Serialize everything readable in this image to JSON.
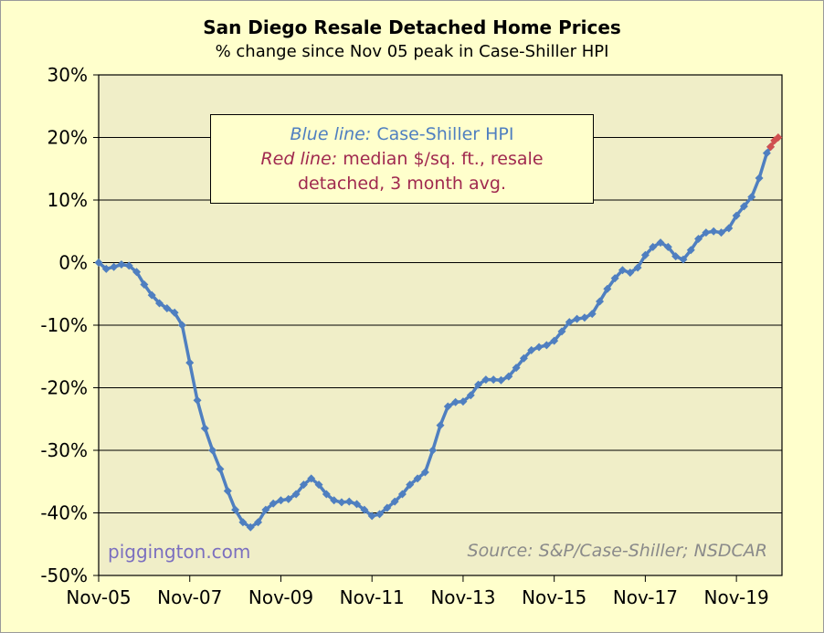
{
  "title": "San Diego Resale Detached Home Prices",
  "subtitle": "% change since Nov 05 peak in Case-Shiller HPI",
  "legend": {
    "blue_label": "Blue line:",
    "blue_text": "Case-Shiller HPI",
    "red_label": "Red line:",
    "red_text_1": "median $/sq. ft., resale",
    "red_text_2": "detached, 3 month avg."
  },
  "watermark": "piggington.com",
  "source": "Source: S&P/Case-Shiller; NSDCAR",
  "colors": {
    "blue": "#4f7fc0",
    "red": "#d05050",
    "plot_bg": "#f0eec8",
    "frame_bg": "#ffffcc",
    "legend_blue": "#4f7fc0",
    "legend_red": "#a0294f"
  },
  "chart_data": {
    "type": "line",
    "x_tick_labels": [
      "Nov-05",
      "Nov-07",
      "Nov-09",
      "Nov-11",
      "Nov-13",
      "Nov-15",
      "Nov-17",
      "Nov-19"
    ],
    "y_tick_labels": [
      "30%",
      "20%",
      "10%",
      "0%",
      "-10%",
      "-20%",
      "-30%",
      "-40%",
      "-50%"
    ],
    "ylim": [
      -50,
      30
    ],
    "x_range_months": [
      0,
      180
    ],
    "grid": true,
    "series": [
      {
        "name": "Case-Shiller HPI",
        "color": "#4f7fc0",
        "points": [
          [
            0,
            0
          ],
          [
            2,
            -1
          ],
          [
            4,
            -0.7
          ],
          [
            6,
            -0.3
          ],
          [
            8,
            -0.5
          ],
          [
            10,
            -1.5
          ],
          [
            12,
            -3.5
          ],
          [
            14,
            -5.2
          ],
          [
            16,
            -6.5
          ],
          [
            18,
            -7.3
          ],
          [
            20,
            -8
          ],
          [
            22,
            -10
          ],
          [
            24,
            -16
          ],
          [
            26,
            -22
          ],
          [
            28,
            -26.5
          ],
          [
            30,
            -30
          ],
          [
            32,
            -33
          ],
          [
            34,
            -36.5
          ],
          [
            36,
            -39.5
          ],
          [
            38,
            -41.5
          ],
          [
            40,
            -42.3
          ],
          [
            42,
            -41.5
          ],
          [
            44,
            -39.5
          ],
          [
            46,
            -38.5
          ],
          [
            48,
            -38
          ],
          [
            50,
            -37.8
          ],
          [
            52,
            -37
          ],
          [
            54,
            -35.5
          ],
          [
            56,
            -34.5
          ],
          [
            58,
            -35.5
          ],
          [
            60,
            -37
          ],
          [
            62,
            -38
          ],
          [
            64,
            -38.3
          ],
          [
            66,
            -38.2
          ],
          [
            68,
            -38.6
          ],
          [
            70,
            -39.5
          ],
          [
            72,
            -40.5
          ],
          [
            74,
            -40.2
          ],
          [
            76,
            -39.2
          ],
          [
            78,
            -38.2
          ],
          [
            80,
            -37
          ],
          [
            82,
            -35.5
          ],
          [
            84,
            -34.5
          ],
          [
            86,
            -33.5
          ],
          [
            88,
            -30
          ],
          [
            90,
            -26
          ],
          [
            92,
            -23
          ],
          [
            94,
            -22.3
          ],
          [
            96,
            -22.2
          ],
          [
            98,
            -21.2
          ],
          [
            100,
            -19.5
          ],
          [
            102,
            -18.7
          ],
          [
            104,
            -18.7
          ],
          [
            106,
            -18.8
          ],
          [
            108,
            -18.2
          ],
          [
            110,
            -16.8
          ],
          [
            112,
            -15.3
          ],
          [
            114,
            -14
          ],
          [
            116,
            -13.5
          ],
          [
            118,
            -13.2
          ],
          [
            120,
            -12.5
          ],
          [
            122,
            -11
          ],
          [
            124,
            -9.5
          ],
          [
            126,
            -9
          ],
          [
            128,
            -8.8
          ],
          [
            130,
            -8.2
          ],
          [
            132,
            -6.2
          ],
          [
            134,
            -4.2
          ],
          [
            136,
            -2.5
          ],
          [
            138,
            -1.2
          ],
          [
            140,
            -1.6
          ],
          [
            142,
            -0.8
          ],
          [
            144,
            1.2
          ],
          [
            146,
            2.5
          ],
          [
            148,
            3.2
          ],
          [
            150,
            2.5
          ],
          [
            152,
            1
          ],
          [
            154,
            0.5
          ],
          [
            156,
            2
          ],
          [
            158,
            3.8
          ],
          [
            160,
            4.8
          ],
          [
            162,
            5
          ],
          [
            164,
            4.8
          ],
          [
            166,
            5.5
          ],
          [
            168,
            7.5
          ],
          [
            170,
            9
          ],
          [
            172,
            10.5
          ],
          [
            174,
            13.5
          ],
          [
            176,
            17.5
          ],
          [
            177,
            18.5
          ]
        ]
      },
      {
        "name": "median $/sq. ft., resale detached, 3 month avg.",
        "color": "#d05050",
        "points": [
          [
            177,
            18.5
          ],
          [
            178,
            19.5
          ],
          [
            179,
            20
          ]
        ]
      }
    ]
  }
}
